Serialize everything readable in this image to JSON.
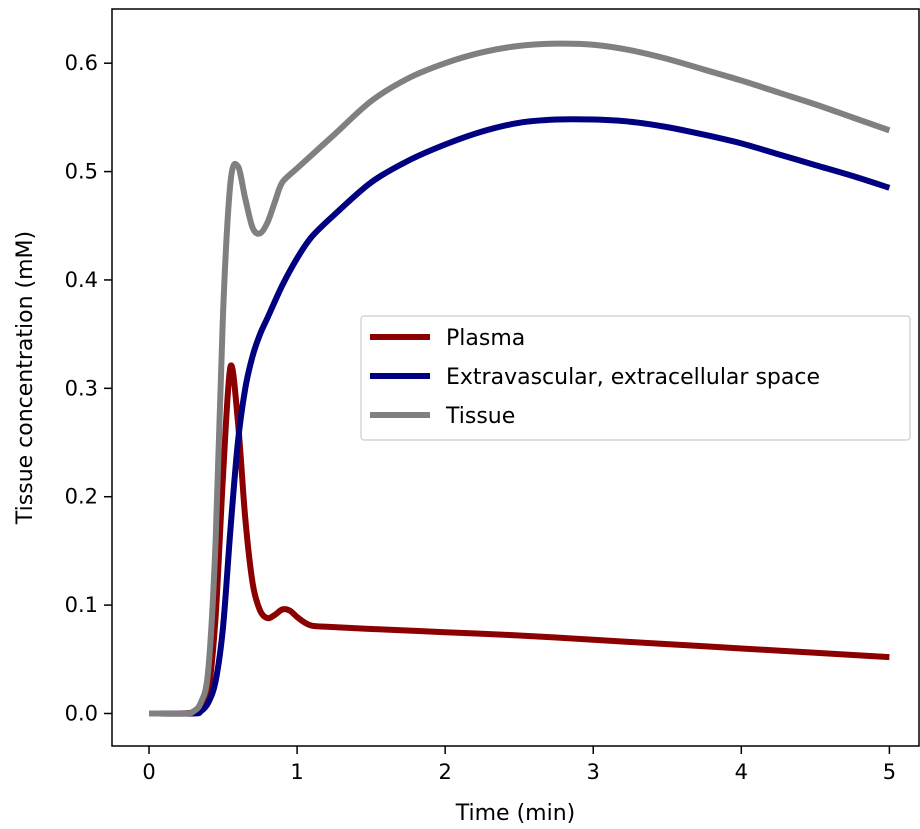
{
  "chart_data": {
    "type": "line",
    "xlabel": "Time (min)",
    "ylabel": "Tissue concentration (mM)",
    "xlim": [
      -0.25,
      5.2
    ],
    "ylim": [
      -0.03,
      0.65
    ],
    "xticks": [
      0,
      1,
      2,
      3,
      4,
      5
    ],
    "xtick_labels": [
      "0",
      "1",
      "2",
      "3",
      "4",
      "5"
    ],
    "yticks": [
      0.0,
      0.1,
      0.2,
      0.3,
      0.4,
      0.5,
      0.6
    ],
    "ytick_labels": [
      "0.0",
      "0.1",
      "0.2",
      "0.3",
      "0.4",
      "0.5",
      "0.6"
    ],
    "grid": false,
    "legend_position": "center-right",
    "series": [
      {
        "name": "Plasma",
        "color": "#8b0000",
        "points": [
          [
            0,
            0
          ],
          [
            0.2,
            0
          ],
          [
            0.3,
            0.001
          ],
          [
            0.35,
            0.004
          ],
          [
            0.4,
            0.02
          ],
          [
            0.45,
            0.09
          ],
          [
            0.5,
            0.22
          ],
          [
            0.55,
            0.32
          ],
          [
            0.6,
            0.27
          ],
          [
            0.65,
            0.18
          ],
          [
            0.7,
            0.12
          ],
          [
            0.75,
            0.095
          ],
          [
            0.8,
            0.088
          ],
          [
            0.85,
            0.091
          ],
          [
            0.9,
            0.096
          ],
          [
            0.95,
            0.095
          ],
          [
            1.0,
            0.089
          ],
          [
            1.05,
            0.084
          ],
          [
            1.1,
            0.081
          ],
          [
            1.2,
            0.08
          ],
          [
            1.5,
            0.078
          ],
          [
            2.0,
            0.075
          ],
          [
            2.5,
            0.072
          ],
          [
            3.0,
            0.068
          ],
          [
            3.5,
            0.064
          ],
          [
            4.0,
            0.06
          ],
          [
            4.5,
            0.056
          ],
          [
            5.0,
            0.052
          ]
        ]
      },
      {
        "name": "Extravascular, extracellular space",
        "color": "#000080",
        "points": [
          [
            0,
            0
          ],
          [
            0.3,
            0
          ],
          [
            0.35,
            0.002
          ],
          [
            0.4,
            0.01
          ],
          [
            0.45,
            0.03
          ],
          [
            0.5,
            0.08
          ],
          [
            0.55,
            0.17
          ],
          [
            0.6,
            0.25
          ],
          [
            0.65,
            0.3
          ],
          [
            0.7,
            0.33
          ],
          [
            0.75,
            0.35
          ],
          [
            0.8,
            0.365
          ],
          [
            0.9,
            0.395
          ],
          [
            1.0,
            0.42
          ],
          [
            1.1,
            0.44
          ],
          [
            1.25,
            0.46
          ],
          [
            1.5,
            0.49
          ],
          [
            1.75,
            0.51
          ],
          [
            2.0,
            0.525
          ],
          [
            2.25,
            0.537
          ],
          [
            2.5,
            0.545
          ],
          [
            2.75,
            0.548
          ],
          [
            3.0,
            0.548
          ],
          [
            3.25,
            0.546
          ],
          [
            3.5,
            0.541
          ],
          [
            3.75,
            0.534
          ],
          [
            4.0,
            0.526
          ],
          [
            4.25,
            0.516
          ],
          [
            4.5,
            0.506
          ],
          [
            4.75,
            0.496
          ],
          [
            5.0,
            0.485
          ]
        ]
      },
      {
        "name": "Tissue",
        "color": "#808080",
        "points": [
          [
            0,
            0
          ],
          [
            0.25,
            0
          ],
          [
            0.3,
            0.002
          ],
          [
            0.35,
            0.01
          ],
          [
            0.4,
            0.04
          ],
          [
            0.45,
            0.16
          ],
          [
            0.5,
            0.37
          ],
          [
            0.55,
            0.49
          ],
          [
            0.6,
            0.505
          ],
          [
            0.65,
            0.475
          ],
          [
            0.7,
            0.448
          ],
          [
            0.75,
            0.443
          ],
          [
            0.8,
            0.453
          ],
          [
            0.85,
            0.472
          ],
          [
            0.9,
            0.49
          ],
          [
            1.0,
            0.503
          ],
          [
            1.25,
            0.534
          ],
          [
            1.5,
            0.565
          ],
          [
            1.75,
            0.586
          ],
          [
            2.0,
            0.6
          ],
          [
            2.25,
            0.61
          ],
          [
            2.5,
            0.616
          ],
          [
            2.75,
            0.618
          ],
          [
            3.0,
            0.617
          ],
          [
            3.25,
            0.612
          ],
          [
            3.5,
            0.604
          ],
          [
            3.75,
            0.594
          ],
          [
            4.0,
            0.584
          ],
          [
            4.25,
            0.573
          ],
          [
            4.5,
            0.562
          ],
          [
            4.75,
            0.55
          ],
          [
            5.0,
            0.538
          ]
        ]
      }
    ]
  }
}
